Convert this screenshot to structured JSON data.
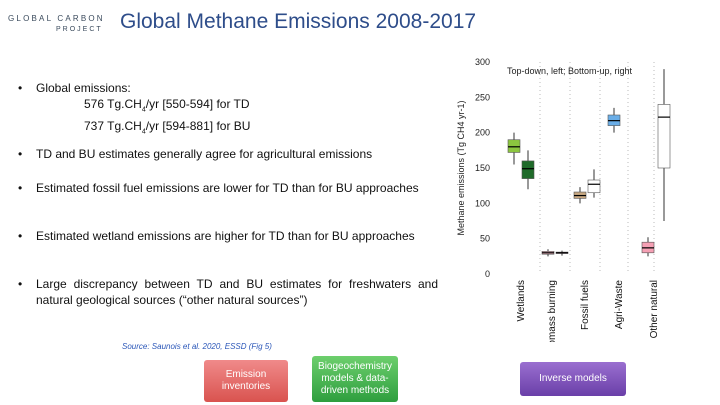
{
  "logo": {
    "top_text": "GLOBAL CARBON",
    "bottom_text": "PROJECT"
  },
  "title": "Global Methane Emissions 2008-2017",
  "bullets": [
    {
      "text": "Global emissions:"
    },
    {
      "text": "TD and BU estimates generally agree for agricultural emissions"
    },
    {
      "text": "Estimated fossil fuel emissions are lower for TD than for BU approaches"
    },
    {
      "text": "Estimated wetland emissions are higher for TD than for BU approaches"
    },
    {
      "text": "Large discrepancy between TD and BU estimates for freshwaters and natural geological sources (“other natural sources”)"
    }
  ],
  "global_emissions": {
    "td_value": "576",
    "td_unit": " Tg.CH",
    "td_sub": "4",
    "td_rest": "/yr [550-594] for TD",
    "bu_value": "737",
    "bu_unit": " Tg.CH",
    "bu_sub": "4",
    "bu_rest": "/yr [594-881] for BU"
  },
  "source": "Source: Saunois et al. 2020, ESSD (Fig 5)",
  "boxes": {
    "emission_inventories": "Emission inventories",
    "biogeochemistry": "Biogeochemistry models & data-driven methods",
    "inverse_models": "Inverse models"
  },
  "chart_annotation": "Top-down, left; Bottom-up, right",
  "colors": {
    "title": "#2e4d8a",
    "source": "#2a56b8",
    "red": "#d9534f",
    "green": "#2e9e3e",
    "purple": "#6a3fa8"
  },
  "chart_data": {
    "type": "boxplot",
    "ylabel": "Methane emissions (Tg CH4 yr-1)",
    "ylim": [
      0,
      300
    ],
    "yticks": [
      0,
      50,
      100,
      150,
      200,
      250,
      300
    ],
    "categories": [
      "Wetlands",
      "Biomass burning",
      "Fossil fuels",
      "Agri-Waste",
      "Other natural"
    ],
    "series": [
      {
        "category": "Wetlands",
        "approach": "TD",
        "color": "#8cc63f",
        "min": 155,
        "q1": 172,
        "median": 180,
        "q3": 190,
        "max": 200
      },
      {
        "category": "Wetlands",
        "approach": "BU",
        "color": "#1f6b2a",
        "min": 120,
        "q1": 135,
        "median": 149,
        "q3": 160,
        "max": 175
      },
      {
        "category": "Biomass burning",
        "approach": "TD",
        "color": "#f4b6c2",
        "min": 25,
        "q1": 28,
        "median": 30,
        "q3": 32,
        "max": 35
      },
      {
        "category": "Biomass burning",
        "approach": "BU",
        "color": "#6b1b3a",
        "min": 26,
        "q1": 29,
        "median": 30,
        "q3": 31,
        "max": 33
      },
      {
        "category": "Fossil fuels",
        "approach": "TD",
        "color": "#c8a882",
        "min": 100,
        "q1": 107,
        "median": 111,
        "q3": 116,
        "max": 123
      },
      {
        "category": "Fossil fuels",
        "approach": "BU",
        "color": "#ffffff",
        "min": 108,
        "q1": 115,
        "median": 127,
        "q3": 133,
        "max": 148
      },
      {
        "category": "Agri-Waste",
        "approach": "TD",
        "color": "#6aaee8",
        "min": 200,
        "q1": 210,
        "median": 217,
        "q3": 225,
        "max": 235
      },
      {
        "category": "Other natural",
        "approach": "TD",
        "color": "#f5a0b4",
        "min": 25,
        "q1": 30,
        "median": 37,
        "q3": 45,
        "max": 52
      },
      {
        "category": "Other natural",
        "approach": "BU",
        "color": "#ffffff",
        "min": 75,
        "q1": 150,
        "median": 222,
        "q3": 240,
        "max": 290
      }
    ]
  }
}
